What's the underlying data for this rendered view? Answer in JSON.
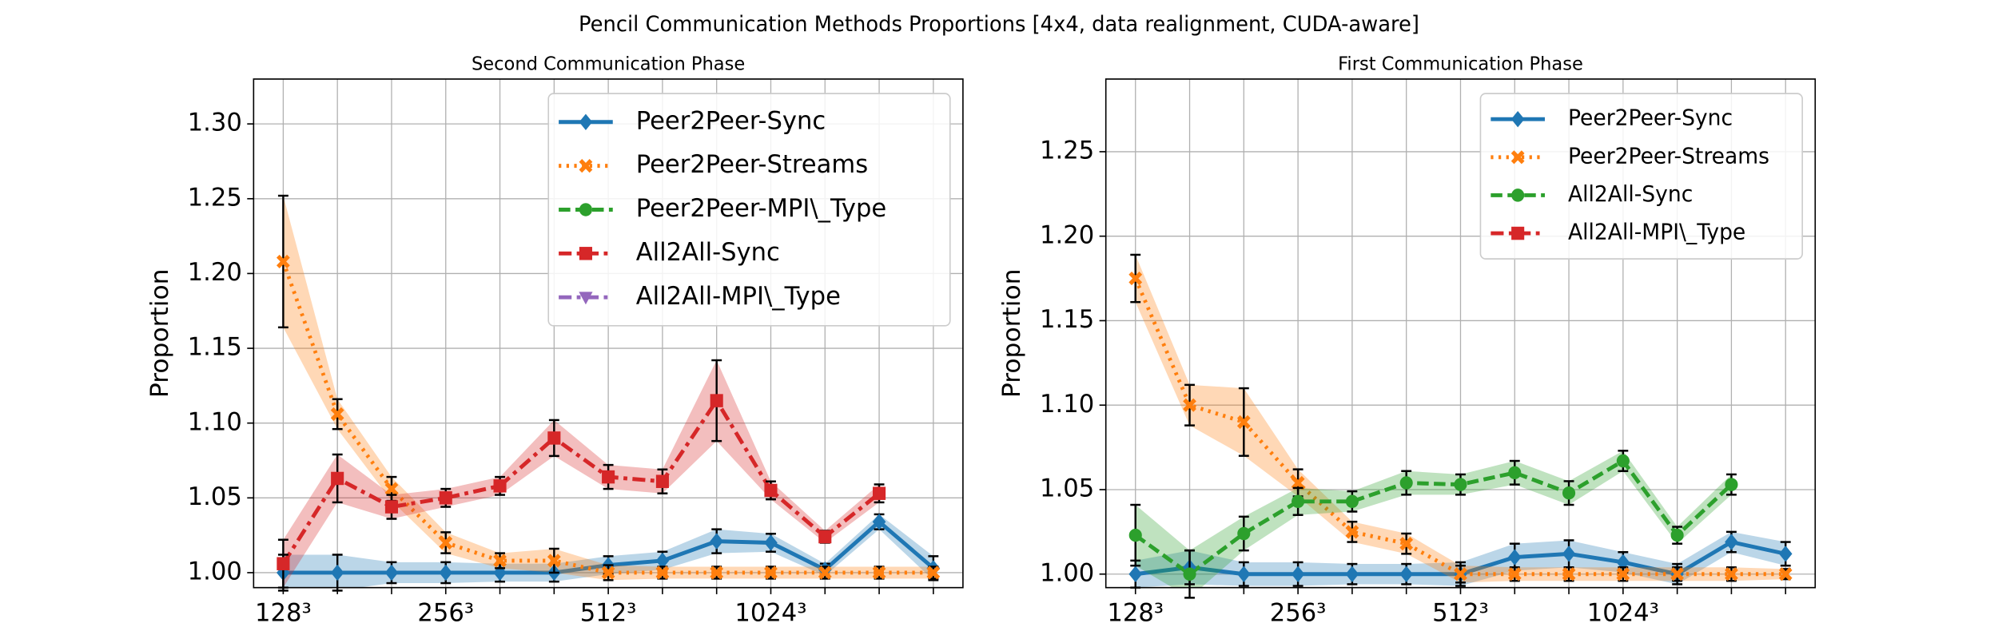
{
  "title": "Pencil Communication Methods Proportions [4x4, data realignment, CUDA-aware]",
  "chart_data": [
    {
      "type": "line",
      "title": "Second Communication Phase",
      "ylabel": "Proportion",
      "categories": [
        "128³",
        null,
        null,
        "256³",
        null,
        null,
        "512³",
        null,
        null,
        "1024³",
        null,
        null,
        null
      ],
      "ylim": [
        0.99,
        1.33
      ],
      "yticks": [
        {
          "value": 1.0,
          "label": "1.00"
        },
        1.05,
        {
          "value": 1.1,
          "label": "1.10"
        },
        1.15,
        {
          "value": 1.2,
          "label": "1.20"
        },
        1.25,
        {
          "value": 1.3,
          "label": "1.30"
        }
      ],
      "grid": true,
      "legend": "upper right",
      "series": [
        {
          "name": "Peer2Peer-Sync",
          "color": "#1f77b4",
          "linestyle": "solid",
          "marker": "diamond",
          "values": [
            1.0,
            1.0,
            1.0,
            1.0,
            1.0,
            1.0,
            1.005,
            1.008,
            1.021,
            1.02,
            1.002,
            1.034,
            1.003
          ],
          "errors": [
            0.012,
            0.012,
            0.007,
            0.007,
            0.006,
            0.006,
            0.006,
            0.006,
            0.008,
            0.006,
            0.004,
            0.005,
            0.008
          ]
        },
        {
          "name": "Peer2Peer-Streams",
          "color": "#ff7f0e",
          "linestyle": "dotted",
          "marker": "x",
          "values": [
            1.208,
            1.106,
            1.056,
            1.02,
            1.008,
            1.008,
            1.0,
            1.0,
            1.0,
            1.0,
            1.0,
            1.0,
            1.0
          ],
          "errors": [
            0.044,
            0.01,
            0.008,
            0.007,
            0.005,
            0.008,
            0.005,
            0.004,
            0.004,
            0.004,
            0.004,
            0.004,
            0.004
          ]
        },
        {
          "name": "Peer2Peer-MPI\\_Type",
          "color": "#2ca02c",
          "linestyle": "dashed",
          "marker": "circle",
          "values": [
            null,
            null,
            null,
            null,
            null,
            null,
            null,
            null,
            null,
            null,
            null,
            null,
            null
          ],
          "errors": [
            null,
            null,
            null,
            null,
            null,
            null,
            null,
            null,
            null,
            null,
            null,
            null,
            null
          ]
        },
        {
          "name": "All2All-Sync",
          "color": "#d62728",
          "linestyle": "dashdot",
          "marker": "square",
          "values": [
            1.006,
            1.063,
            1.044,
            1.05,
            1.058,
            1.09,
            1.064,
            1.061,
            1.115,
            1.055,
            1.024,
            1.053,
            null
          ],
          "errors": [
            0.016,
            0.016,
            0.008,
            0.006,
            0.006,
            0.012,
            0.008,
            0.008,
            0.027,
            0.006,
            0.004,
            0.006,
            null
          ]
        },
        {
          "name": "All2All-MPI\\_Type",
          "color": "#9467bd",
          "linestyle": "dashdot",
          "marker": "triangle",
          "values": [
            null,
            null,
            null,
            null,
            null,
            null,
            null,
            null,
            null,
            null,
            null,
            null,
            null
          ],
          "errors": [
            null,
            null,
            null,
            null,
            null,
            null,
            null,
            null,
            null,
            null,
            null,
            null,
            null
          ]
        }
      ]
    },
    {
      "type": "line",
      "title": "First Communication Phase",
      "ylabel": "Proportion",
      "categories": [
        "128³",
        null,
        null,
        "256³",
        null,
        null,
        "512³",
        null,
        null,
        "1024³",
        null,
        null,
        null
      ],
      "ylim": [
        0.992,
        1.293
      ],
      "yticks": [
        {
          "value": 1.0,
          "label": "1.00"
        },
        1.05,
        {
          "value": 1.1,
          "label": "1.10"
        },
        1.15,
        {
          "value": 1.2,
          "label": "1.20"
        },
        1.25
      ],
      "grid": true,
      "legend": "upper right",
      "series": [
        {
          "name": "Peer2Peer-Sync",
          "color": "#1f77b4",
          "linestyle": "solid",
          "marker": "diamond",
          "values": [
            1.0,
            1.004,
            1.0,
            1.0,
            1.0,
            1.0,
            1.0,
            1.01,
            1.012,
            1.007,
            1.0,
            1.019,
            1.012
          ],
          "errors": [
            0.008,
            0.01,
            0.007,
            0.007,
            0.006,
            0.006,
            0.007,
            0.008,
            0.008,
            0.006,
            0.006,
            0.006,
            0.007
          ]
        },
        {
          "name": "Peer2Peer-Streams",
          "color": "#ff7f0e",
          "linestyle": "dotted",
          "marker": "x",
          "values": [
            1.175,
            1.1,
            1.09,
            1.054,
            1.025,
            1.018,
            1.0,
            1.0,
            1.0,
            1.0,
            1.0,
            1.0,
            1.0
          ],
          "errors": [
            0.014,
            0.012,
            0.02,
            0.008,
            0.006,
            0.006,
            0.005,
            0.004,
            0.004,
            0.004,
            0.004,
            0.004,
            0.003
          ]
        },
        {
          "name": "All2All-Sync",
          "color": "#2ca02c",
          "linestyle": "dashed",
          "marker": "circle",
          "values": [
            1.023,
            1.0,
            1.024,
            1.043,
            1.043,
            1.054,
            1.053,
            1.06,
            1.048,
            1.067,
            1.023,
            1.053,
            null
          ],
          "errors": [
            0.018,
            0.014,
            0.01,
            0.008,
            0.006,
            0.007,
            0.006,
            0.007,
            0.007,
            0.006,
            0.005,
            0.006,
            null
          ]
        },
        {
          "name": "All2All-MPI\\_Type",
          "color": "#d62728",
          "linestyle": "dashdot",
          "marker": "square",
          "values": [
            null,
            null,
            null,
            null,
            null,
            null,
            null,
            null,
            null,
            null,
            null,
            null,
            null
          ],
          "errors": [
            null,
            null,
            null,
            null,
            null,
            null,
            null,
            null,
            null,
            null,
            null,
            null,
            null
          ]
        }
      ]
    }
  ]
}
